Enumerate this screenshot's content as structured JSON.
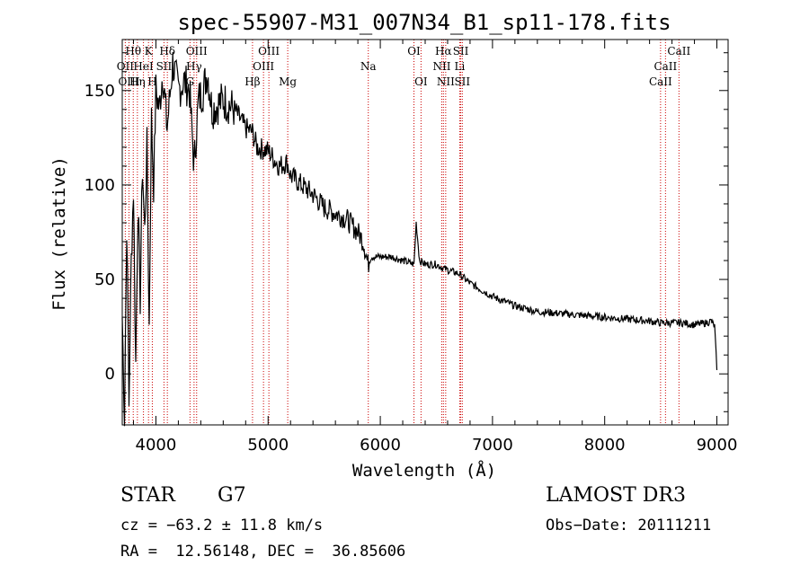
{
  "chart_data": {
    "type": "line",
    "title": "spec-55907-M31_007N34_B1_sp11-178.fits",
    "xlabel": "Wavelength (Å)",
    "ylabel": "Flux (relative)",
    "xlim": [
      3700,
      9100
    ],
    "ylim": [
      -27,
      177
    ],
    "xticks": [
      4000,
      5000,
      6000,
      7000,
      8000,
      9000
    ],
    "yticks": [
      0,
      50,
      100,
      150
    ],
    "series": [
      {
        "name": "spectrum",
        "x": [
          3700,
          3720,
          3740,
          3760,
          3780,
          3800,
          3820,
          3840,
          3860,
          3880,
          3900,
          3920,
          3940,
          3960,
          3980,
          4000,
          4030,
          4060,
          4100,
          4150,
          4200,
          4250,
          4300,
          4340,
          4380,
          4420,
          4460,
          4500,
          4600,
          4700,
          4800,
          4860,
          4900,
          5000,
          5100,
          5170,
          5200,
          5300,
          5400,
          5500,
          5600,
          5700,
          5800,
          5850,
          5890,
          5920,
          6000,
          6100,
          6200,
          6300,
          6320,
          6350,
          6400,
          6500,
          6560,
          6600,
          6700,
          6800,
          7000,
          7200,
          7400,
          7600,
          7800,
          8000,
          8200,
          8400,
          8500,
          8600,
          8700,
          8800,
          8900,
          8950,
          8980,
          9000
        ],
        "y": [
          30,
          -22,
          80,
          -15,
          60,
          98,
          5,
          90,
          40,
          110,
          75,
          120,
          25,
          135,
          100,
          150,
          140,
          160,
          130,
          165,
          150,
          155,
          150,
          110,
          145,
          150,
          160,
          140,
          145,
          140,
          130,
          128,
          120,
          118,
          110,
          112,
          105,
          100,
          95,
          88,
          85,
          82,
          75,
          70,
          58,
          62,
          62,
          62,
          60,
          58,
          80,
          60,
          58,
          58,
          56,
          55,
          53,
          48,
          41,
          36,
          33,
          32,
          31,
          30,
          29,
          28,
          27,
          27,
          27,
          26,
          27,
          28,
          25,
          2
        ]
      }
    ],
    "emission_lines": [
      {
        "name": "Hθ",
        "wave": 3798,
        "row": 0
      },
      {
        "name": "K",
        "wave": 3934,
        "row": 0
      },
      {
        "name": "Hδ",
        "wave": 4102,
        "row": 0
      },
      {
        "name": "OIII",
        "wave": 4363,
        "row": 0
      },
      {
        "name": "OIII",
        "wave": 5007,
        "row": 0
      },
      {
        "name": "OI",
        "wave": 6300,
        "row": 0
      },
      {
        "name": "Hα",
        "wave": 6563,
        "row": 0
      },
      {
        "name": "SII",
        "wave": 6717,
        "row": 0
      },
      {
        "name": "CaII",
        "wave": 8662,
        "row": 0
      },
      {
        "name": "OII",
        "wave": 3727,
        "row": 1
      },
      {
        "name": "HeI",
        "wave": 3889,
        "row": 1
      },
      {
        "name": "SII",
        "wave": 4072,
        "row": 1
      },
      {
        "name": "Hγ",
        "wave": 4340,
        "row": 1
      },
      {
        "name": "OIII",
        "wave": 4959,
        "row": 1
      },
      {
        "name": "Na",
        "wave": 5893,
        "row": 1
      },
      {
        "name": "NII",
        "wave": 6548,
        "row": 1
      },
      {
        "name": "Li",
        "wave": 6708,
        "row": 1
      },
      {
        "name": "CaII",
        "wave": 8542,
        "row": 1
      },
      {
        "name": "OIII",
        "wave": 3760,
        "row": 2
      },
      {
        "name": "Hη",
        "wave": 3835,
        "row": 2
      },
      {
        "name": "H",
        "wave": 3968,
        "row": 2
      },
      {
        "name": "G",
        "wave": 4304,
        "row": 2
      },
      {
        "name": "Hβ",
        "wave": 4861,
        "row": 2
      },
      {
        "name": "Mg",
        "wave": 5175,
        "row": 2
      },
      {
        "name": "OI",
        "wave": 6363,
        "row": 2
      },
      {
        "name": "NII",
        "wave": 6583,
        "row": 2
      },
      {
        "name": "SII",
        "wave": 6731,
        "row": 2
      },
      {
        "name": "CaII",
        "wave": 8498,
        "row": 2
      }
    ]
  },
  "info": {
    "object_class": "STAR",
    "subclass": "G7",
    "survey": "LAMOST DR3",
    "cz": "cz = −63.2 ± 11.8 km/s",
    "obs_date": "Obs−Date: 20111211",
    "coords": "RA =  12.56148, DEC =  36.85606"
  },
  "colors": {
    "spectrum": "#000000",
    "line_marker": "#cc0000",
    "frame": "#000000"
  }
}
